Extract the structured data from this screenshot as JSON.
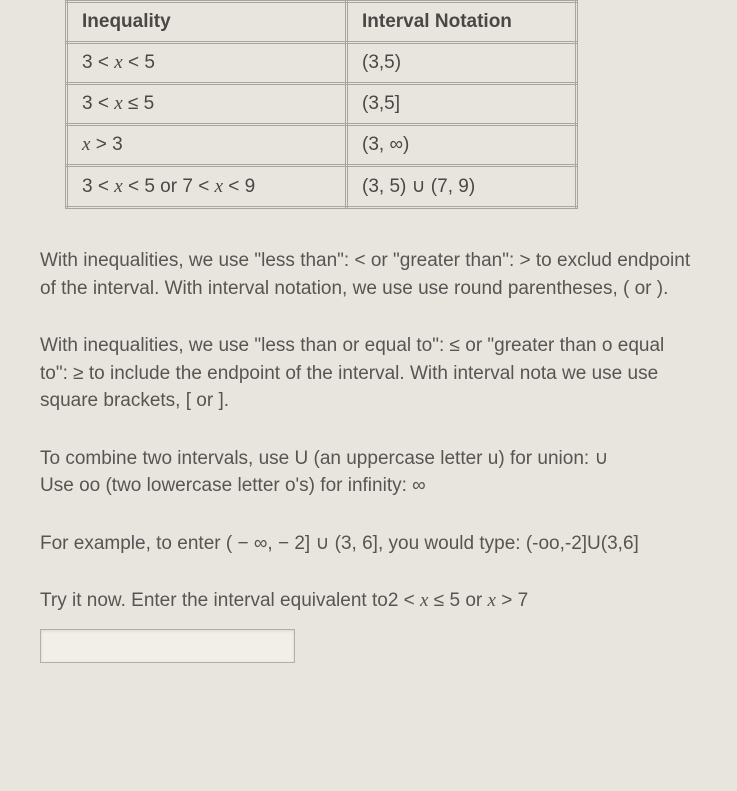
{
  "table": {
    "headers": [
      "Inequality",
      "Interval Notation"
    ],
    "rows": [
      [
        "3 < x < 5",
        "(3,5)"
      ],
      [
        "3 < x ≤ 5",
        "(3,5]"
      ],
      [
        "x > 3",
        "(3, ∞)"
      ],
      [
        "3 < x < 5 or 7 < x < 9",
        "(3, 5) ∪ (7, 9)"
      ]
    ]
  },
  "paragraphs": {
    "p1": "With inequalities, we use \"less than\": < or \"greater than\": > to exclud endpoint of the interval. With interval notation, we use use round parentheses, ( or ).",
    "p2": "With inequalities, we use \"less than or equal to\": ≤ or \"greater than o equal to\": ≥ to include the endpoint of the interval. With interval nota we use use square brackets, [ or ].",
    "p3a": "To combine two intervals, use U (an uppercase letter u) for union: ",
    "p3b": "Use oo (two lowercase letter o's) for infinity: ",
    "p4a": "For example, to enter ",
    "p4b": ", you would type: (-oo,-2]U(3,6]",
    "p5": "Try it now. Enter the interval equivalent to "
  },
  "math": {
    "union_symbol": "∪",
    "infinity_symbol": "∞",
    "example_interval": "( − ∞, − 2] ∪ (3, 6]",
    "prompt_ineq": "2 < x ≤ 5 or x > 7"
  },
  "input": {
    "value": ""
  }
}
